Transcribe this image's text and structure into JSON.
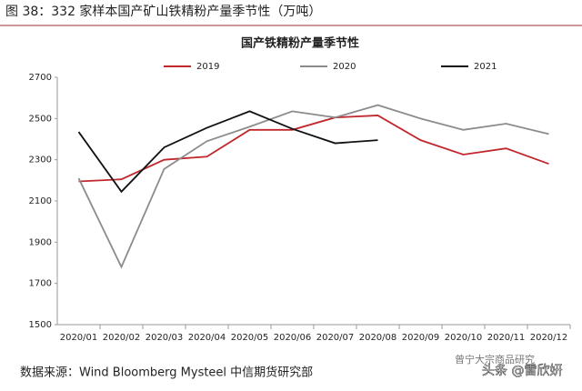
{
  "chart_data": {
    "type": "line",
    "caption": "图 38：332 家样本国产矿山铁精粉产量季节性（万吨）",
    "title": "国产铁精粉产量季节性",
    "categories": [
      "2020/01",
      "2020/02",
      "2020/03",
      "2020/04",
      "2020/05",
      "2020/06",
      "2020/07",
      "2020/08",
      "2020/09",
      "2020/10",
      "2020/11",
      "2020/12"
    ],
    "series": [
      {
        "name": "2019",
        "color": "#c0282d",
        "values": [
          2195,
          2205,
          2300,
          2315,
          2445,
          2445,
          2505,
          2515,
          2395,
          2325,
          2355,
          2280
        ]
      },
      {
        "name": "2020",
        "color": "#8c8c8c",
        "values": [
          2210,
          1780,
          2255,
          2390,
          2460,
          2535,
          2505,
          2565,
          2500,
          2445,
          2475,
          2425
        ]
      },
      {
        "name": "2021",
        "color": "#111111",
        "values": [
          2435,
          2145,
          2360,
          2455,
          2535,
          2450,
          2380,
          2395,
          null,
          null,
          null,
          null
        ]
      }
    ],
    "ylim": [
      1500,
      2700
    ],
    "yticks": [
      1500,
      1700,
      1900,
      2100,
      2300,
      2500,
      2700
    ],
    "grid": false,
    "source": "数据来源：Wind Bloomberg Mysteel 中信期货研究部",
    "watermark": [
      "曾宁大宗商品研究",
      "头条 @雷欣妍"
    ]
  }
}
